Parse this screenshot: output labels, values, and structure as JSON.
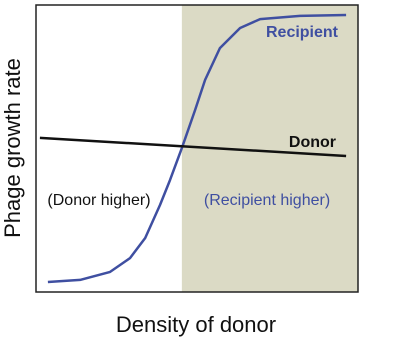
{
  "chart_data": {
    "type": "line",
    "x_label": "Density of donor",
    "y_label": "Phage growth rate",
    "xlim": [
      0,
      100
    ],
    "ylim": [
      0,
      100
    ],
    "shade_from": 45.3,
    "shade_color": "#dbdac5",
    "series": [
      {
        "name": "Recipient",
        "color": "#3f4fa1",
        "x": [
          3.7,
          13.7,
          23,
          29.2,
          33.9,
          38.5,
          41.6,
          45.3,
          49.4,
          52.5,
          57.1,
          63.4,
          69.6,
          82,
          96.3
        ],
        "values": [
          3.5,
          4.2,
          7.0,
          11.8,
          18.8,
          30.3,
          39.0,
          50.2,
          63.4,
          73.9,
          85.0,
          92.0,
          95.1,
          96.2,
          96.5
        ]
      },
      {
        "name": "Donor",
        "color": "#111111",
        "x": [
          1.2,
          96.3
        ],
        "values": [
          53.7,
          47.4
        ]
      }
    ],
    "annotations": [
      "(Donor higher)",
      "(Recipient higher)"
    ]
  }
}
